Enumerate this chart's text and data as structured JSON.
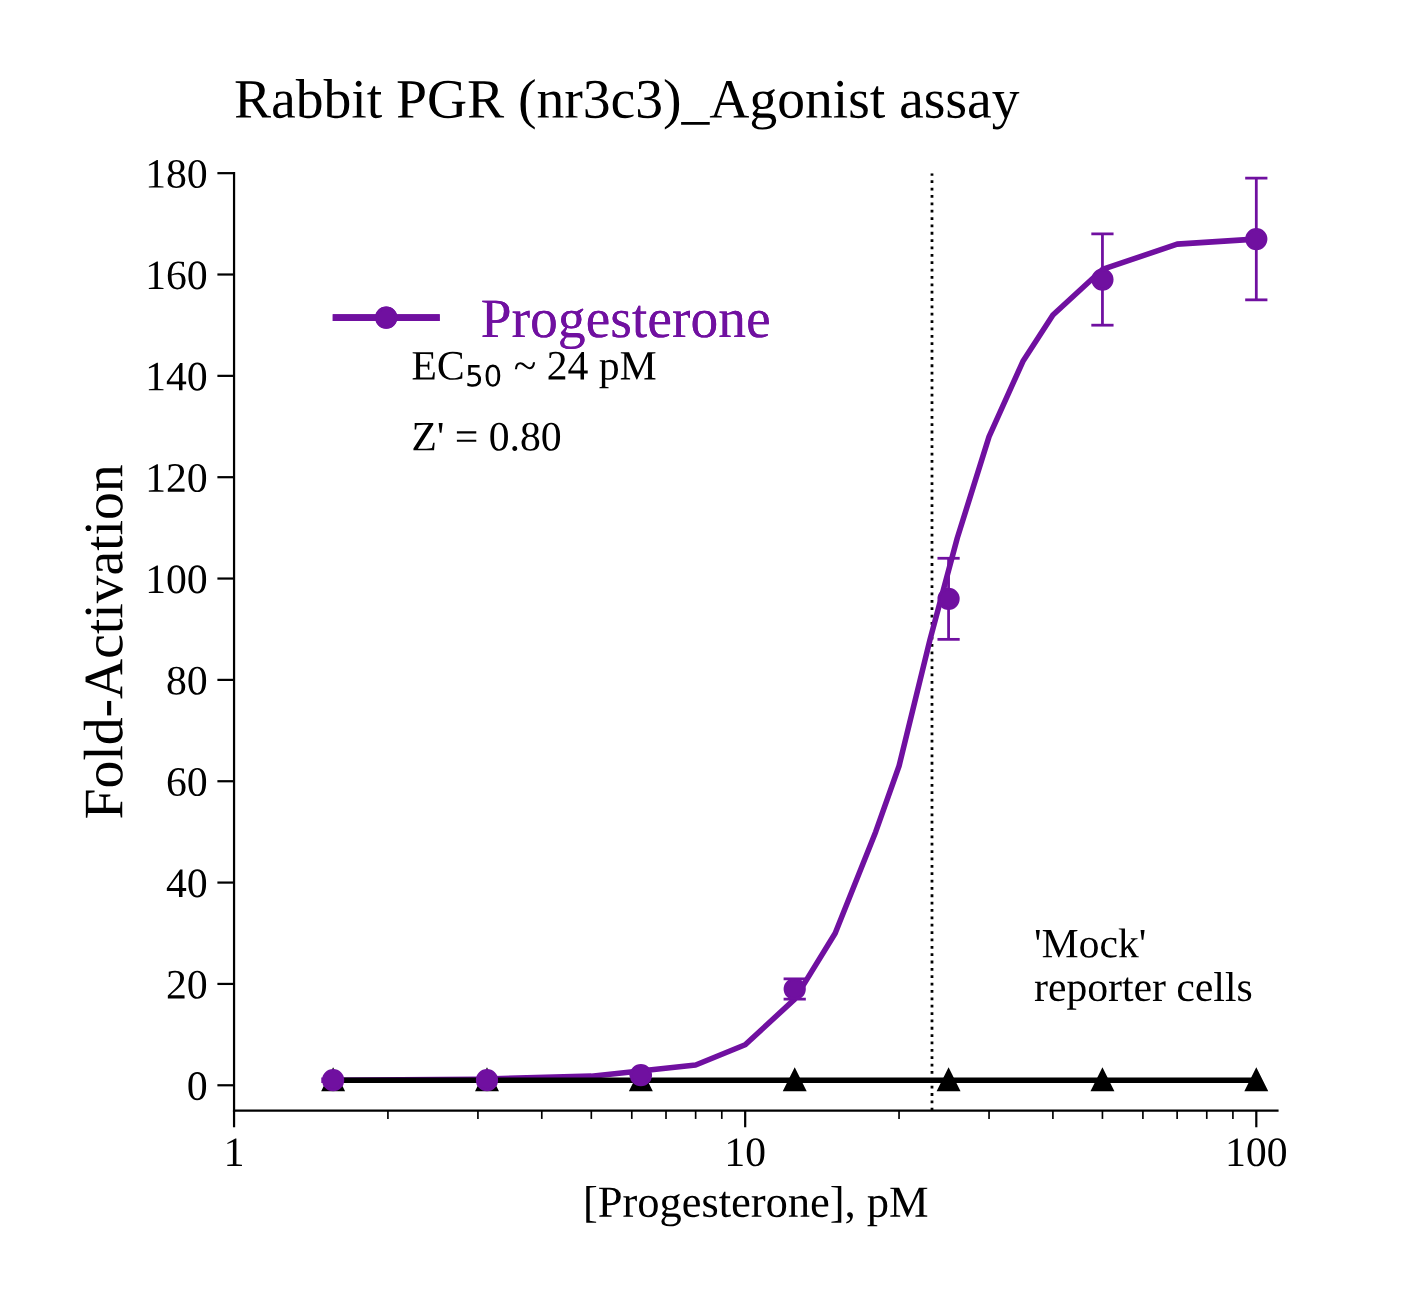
{
  "chart_data": {
    "type": "scatter",
    "title": "Rabbit PGR (nr3c3)_Agonist assay",
    "xlabel": "[Progesterone], pM",
    "ylabel": "Fold-Activation",
    "log": "x",
    "xlim": [
      1,
      110
    ],
    "xticks": [
      1,
      10,
      100
    ],
    "ylim": [
      -5,
      180
    ],
    "yticks": [
      0,
      20,
      40,
      60,
      80,
      100,
      120,
      140,
      160,
      180
    ],
    "grid": false,
    "legend": "top left",
    "marker": "circle",
    "annotations": [
      "EC$_{50}$ ~ 24 pM",
      "Z' = 0.80"
    ],
    "ref_lines": [
      {
        "axis": "x",
        "value": 23.2,
        "color": "#000000",
        "line_style": "dotted"
      }
    ],
    "series": [
      {
        "name": "Progesterone",
        "color": "#7010a0",
        "x": [
          1.5625,
          3.125,
          6.25,
          12.5,
          25,
          50,
          100
        ],
        "values": [
          1,
          1,
          2,
          19,
          96,
          159,
          167
        ],
        "errors": [
          null,
          null,
          null,
          2,
          8,
          9,
          12
        ]
      },
      {
        "type": "line",
        "color": "#7010a0",
        "marker": "none",
        "x": [
          1.5,
          3,
          5,
          8,
          10,
          12.5,
          15,
          18,
          20,
          23,
          26,
          30,
          35,
          40,
          50,
          70,
          100
        ],
        "values": [
          1,
          1.2,
          1.8,
          4,
          8,
          17,
          30,
          50,
          63,
          88,
          108,
          128,
          143,
          152,
          161,
          166,
          167
        ]
      },
      {
        "name": "'Mock'\nreporter cells",
        "type": "line",
        "color": "#000000",
        "marker": "triangle",
        "x": [
          1.5625,
          3.125,
          6.25,
          12.5,
          25,
          50,
          100
        ],
        "values": [
          1,
          1,
          1,
          1,
          1,
          1,
          1
        ]
      }
    ]
  }
}
